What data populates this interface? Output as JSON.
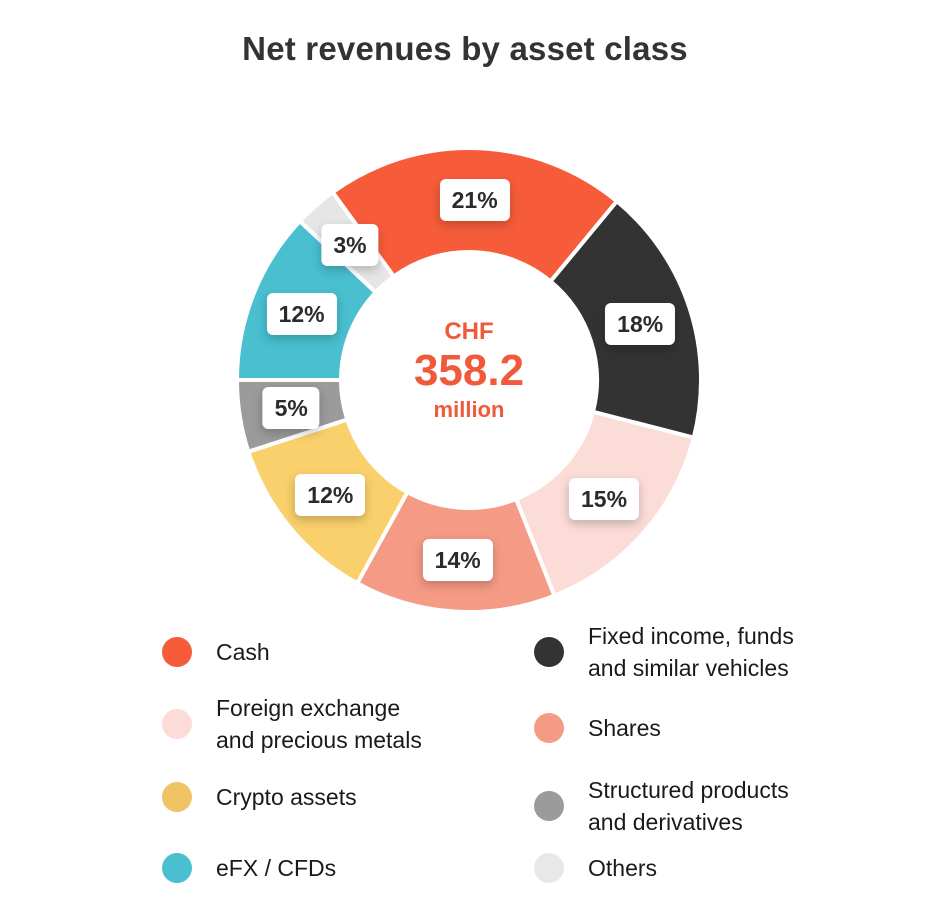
{
  "title": "Net revenues by asset class",
  "center": {
    "currency": "CHF",
    "amount": "358.2",
    "unit": "million"
  },
  "chart_data": {
    "type": "pie",
    "subtype": "donut",
    "title": "Net revenues by asset class",
    "center_label": "CHF 358.2 million",
    "total": 358.2,
    "unit": "CHF million",
    "categories": [
      "Cash",
      "Fixed income, funds and similar vehicles",
      "Foreign exchange and precious metals",
      "Shares",
      "Crypto assets",
      "Structured products and derivatives",
      "eFX / CFDs",
      "Others"
    ],
    "values": [
      21,
      18,
      15,
      14,
      12,
      5,
      12,
      3
    ],
    "value_labels": [
      "21%",
      "18%",
      "15%",
      "14%",
      "12%",
      "5%",
      "12%",
      "3%"
    ],
    "colors": [
      "#f75c3a",
      "#333333",
      "#fcdcd6",
      "#f59a85",
      "#fad06c",
      "#9b9b9b",
      "#49bfd0",
      "#e6e6e6"
    ],
    "start_angle_deg": -36,
    "direction": "clockwise",
    "legend_position": "bottom"
  },
  "slices": [
    {
      "name": "Cash",
      "label": "21%",
      "value": 21,
      "color": "#f75c3a"
    },
    {
      "name": "Fixed income",
      "label": "18%",
      "value": 18,
      "color": "#333333"
    },
    {
      "name": "Foreign exchange",
      "label": "15%",
      "value": 15,
      "color": "#fcdcd6"
    },
    {
      "name": "Shares",
      "label": "14%",
      "value": 14,
      "color": "#f59a85"
    },
    {
      "name": "Crypto assets",
      "label": "12%",
      "value": 12,
      "color": "#fad06c"
    },
    {
      "name": "Structured products",
      "label": "5%",
      "value": 5,
      "color": "#9b9b9b"
    },
    {
      "name": "eFX / CFDs",
      "label": "12%",
      "value": 12,
      "color": "#49bfd0"
    },
    {
      "name": "Others",
      "label": "3%",
      "value": 3,
      "color": "#e6e6e6"
    }
  ],
  "legend": [
    {
      "text": "Cash",
      "color": "#f75c3a"
    },
    {
      "text": "Fixed income, funds\nand similar vehicles",
      "color": "#333333"
    },
    {
      "text": "Foreign exchange\nand precious metals",
      "color": "#fcdcd6"
    },
    {
      "text": "Shares",
      "color": "#f59a85"
    },
    {
      "text": "Crypto assets",
      "color": "#efc464"
    },
    {
      "text": "Structured products\nand derivatives",
      "color": "#9b9b9b"
    },
    {
      "text": "eFX / CFDs",
      "color": "#49bfd0"
    },
    {
      "text": "Others",
      "color": "#e8e8e8"
    }
  ]
}
